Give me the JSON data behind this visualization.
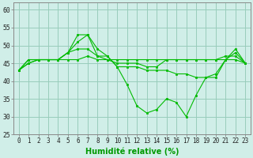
{
  "x": [
    0,
    1,
    2,
    3,
    4,
    5,
    6,
    7,
    8,
    9,
    10,
    11,
    12,
    13,
    14,
    15,
    16,
    17,
    18,
    19,
    20,
    21,
    22,
    23
  ],
  "series": [
    [
      43,
      45,
      46,
      46,
      46,
      48,
      53,
      53,
      47,
      47,
      44,
      39,
      33,
      31,
      32,
      35,
      34,
      30,
      36,
      41,
      41,
      46,
      48,
      45
    ],
    [
      43,
      45,
      46,
      46,
      46,
      48,
      51,
      53,
      49,
      47,
      44,
      44,
      44,
      43,
      43,
      43,
      42,
      42,
      41,
      41,
      42,
      46,
      49,
      45
    ],
    [
      43,
      46,
      46,
      46,
      46,
      48,
      49,
      49,
      47,
      46,
      45,
      45,
      45,
      44,
      44,
      46,
      46,
      46,
      46,
      46,
      46,
      47,
      47,
      45
    ],
    [
      43,
      46,
      46,
      46,
      46,
      46,
      46,
      47,
      46,
      46,
      46,
      46,
      46,
      46,
      46,
      46,
      46,
      46,
      46,
      46,
      46,
      46,
      46,
      45
    ]
  ],
  "line_color": "#00bb00",
  "bg_color": "#d0eee8",
  "grid_color": "#99ccbb",
  "ylim": [
    25,
    62
  ],
  "yticks": [
    25,
    30,
    35,
    40,
    45,
    50,
    55,
    60
  ],
  "xlabel": "Humidité relative (%)",
  "xlabel_color": "#009900",
  "tick_fontsize": 5.5,
  "xlabel_fontsize": 7
}
